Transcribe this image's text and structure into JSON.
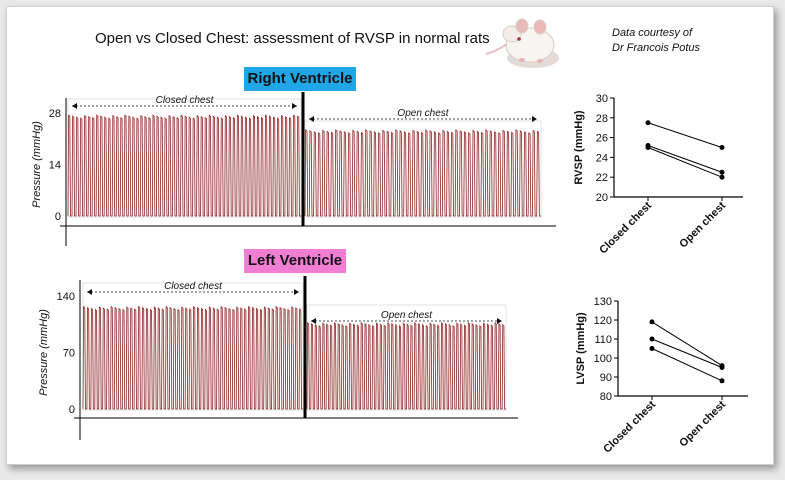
{
  "title": "Open vs Closed Chest: assessment of RVSP in normal rats",
  "courtesy": {
    "line1": "Data courtesy of",
    "line2": "Dr Francois Potus"
  },
  "colors": {
    "trace": "#8e2424",
    "rv_label_bg": "#1ea6e6",
    "lv_label_bg": "#f07fd4",
    "axis": "#000000"
  },
  "icons": {
    "rat": "rat-photo-icon"
  },
  "chart_data": [
    {
      "type": "line",
      "panel": "rv-trace",
      "title": "Right Ventricle",
      "xlabel": "",
      "ylabel": "Pressure (mmHg)",
      "y_ticks": [
        "0",
        "14",
        "28"
      ],
      "ylim": [
        0,
        28
      ],
      "segments": [
        {
          "label": "Closed chest",
          "peak": 27,
          "trough": 0,
          "cycles": 58
        },
        {
          "label": "Open chest",
          "peak": 23,
          "trough": 0,
          "cycles": 55
        }
      ]
    },
    {
      "type": "line",
      "panel": "lv-trace",
      "title": "Left Ventricle",
      "xlabel": "",
      "ylabel": "Pressure (mmHg)",
      "y_ticks": [
        "0",
        "70",
        "140"
      ],
      "ylim": [
        0,
        140
      ],
      "segments": [
        {
          "label": "Closed chest",
          "peak": 125,
          "trough": 0,
          "cycles": 56
        },
        {
          "label": "Open chest",
          "peak": 105,
          "trough": 0,
          "cycles": 52
        }
      ]
    },
    {
      "type": "line",
      "panel": "rvsp-paired",
      "categories": [
        "Closed chest",
        "Open chest"
      ],
      "ylabel": "RVSP (mmHg)",
      "ylim": [
        20,
        30
      ],
      "y_ticks": [
        "20",
        "22",
        "24",
        "26",
        "28",
        "30"
      ],
      "series": [
        {
          "values": [
            27.5,
            25.0
          ]
        },
        {
          "values": [
            25.2,
            22.5
          ]
        },
        {
          "values": [
            25.0,
            22.0
          ]
        }
      ]
    },
    {
      "type": "line",
      "panel": "lvsp-paired",
      "categories": [
        "Closed chest",
        "Open chest"
      ],
      "ylabel": "LVSP (mmHg)",
      "ylim": [
        80,
        130
      ],
      "y_ticks": [
        "80",
        "90",
        "100",
        "110",
        "120",
        "130"
      ],
      "series": [
        {
          "values": [
            119,
            96
          ]
        },
        {
          "values": [
            110,
            95
          ]
        },
        {
          "values": [
            105,
            88
          ]
        }
      ]
    }
  ]
}
